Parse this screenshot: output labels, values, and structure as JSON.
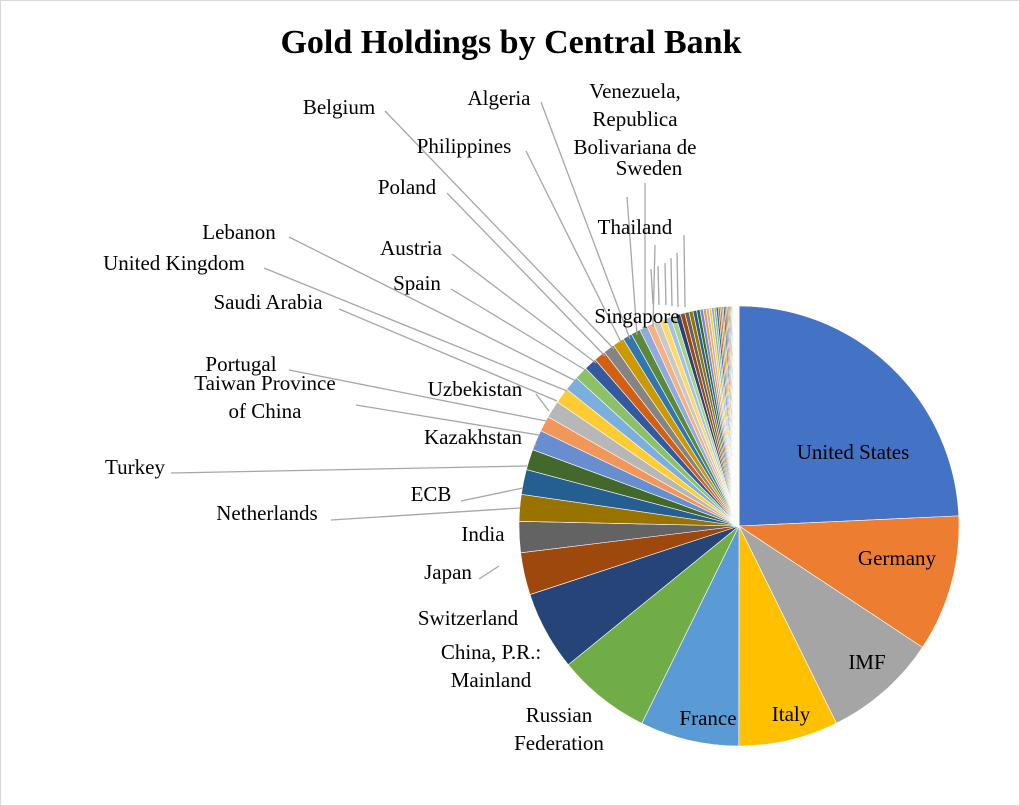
{
  "chart_data": {
    "type": "pie",
    "title": "Gold Holdings by Central Bank",
    "unit": "",
    "slices": [
      {
        "label": "United States",
        "value": 8133.5,
        "color": "#4472c4"
      },
      {
        "label": "Germany",
        "value": 3363.6,
        "color": "#ed7d31"
      },
      {
        "label": "IMF",
        "value": 2814.0,
        "color": "#a5a5a5"
      },
      {
        "label": "Italy",
        "value": 2451.8,
        "color": "#ffc000"
      },
      {
        "label": "France",
        "value": 2436.0,
        "color": "#5b9bd5"
      },
      {
        "label": "Russian Federation",
        "value": 2299.0,
        "color": "#70ad47"
      },
      {
        "label": "China, P.R.: Mainland",
        "value": 1948.3,
        "color": "#264478"
      },
      {
        "label": "Switzerland",
        "value": 1040.0,
        "color": "#9e480e"
      },
      {
        "label": "Japan",
        "value": 765.2,
        "color": "#636363"
      },
      {
        "label": "India",
        "value": 657.7,
        "color": "#997300"
      },
      {
        "label": "Netherlands",
        "value": 612.5,
        "color": "#255e91"
      },
      {
        "label": "ECB",
        "value": 504.8,
        "color": "#43682b"
      },
      {
        "label": "Turkey",
        "value": 498.0,
        "color": "#698ed0"
      },
      {
        "label": "Kazakhstan",
        "value": 385.0,
        "color": "#f1975a"
      },
      {
        "label": "Taiwan Province of China",
        "value": 423.6,
        "color": "#b7b7b7"
      },
      {
        "label": "Portugal",
        "value": 382.5,
        "color": "#ffcd33"
      },
      {
        "label": "Uzbekistan",
        "value": 363.0,
        "color": "#7cafdd"
      },
      {
        "label": "Saudi Arabia",
        "value": 323.1,
        "color": "#8cc168"
      },
      {
        "label": "United Kingdom",
        "value": 310.3,
        "color": "#335aa1"
      },
      {
        "label": "Lebanon",
        "value": 286.8,
        "color": "#d26012"
      },
      {
        "label": "Spain",
        "value": 281.6,
        "color": "#848484"
      },
      {
        "label": "Austria",
        "value": 280.0,
        "color": "#cc9a00"
      },
      {
        "label": "Poland",
        "value": 228.6,
        "color": "#3276b1"
      },
      {
        "label": "Belgium",
        "value": 227.4,
        "color": "#5a8a39"
      },
      {
        "label": "Philippines",
        "value": 197.9,
        "color": "#8faadc"
      },
      {
        "label": "Algeria",
        "value": 173.6,
        "color": "#f4b183"
      },
      {
        "label": "Venezuela, Republica Bolivariana de",
        "value": 161.2,
        "color": "#c9c9c9"
      },
      {
        "label": "Thailand",
        "value": 154.0,
        "color": "#ffd966"
      },
      {
        "label": "Singapore",
        "value": 127.4,
        "color": "#9dc3e6"
      },
      {
        "label": "Sweden",
        "value": 125.7,
        "color": "#a9d18e"
      }
    ],
    "other_slices": [
      118,
      112,
      104,
      98,
      90,
      84,
      79,
      74,
      68,
      63,
      58,
      54,
      50,
      46,
      43,
      40,
      37,
      34,
      31,
      28,
      26,
      24,
      22,
      20,
      18,
      16,
      15,
      14,
      13,
      12,
      11,
      10,
      9,
      8,
      7,
      6,
      5,
      4,
      3,
      2.5,
      2,
      1.5
    ],
    "other_colors": [
      "#264478",
      "#9e480e",
      "#636363",
      "#997300",
      "#255e91",
      "#43682b",
      "#698ed0",
      "#f1975a",
      "#b7b7b7",
      "#ffcd33",
      "#7cafdd",
      "#8cc168",
      "#335aa1",
      "#d26012",
      "#848484",
      "#cc9a00"
    ],
    "legend": "none"
  }
}
